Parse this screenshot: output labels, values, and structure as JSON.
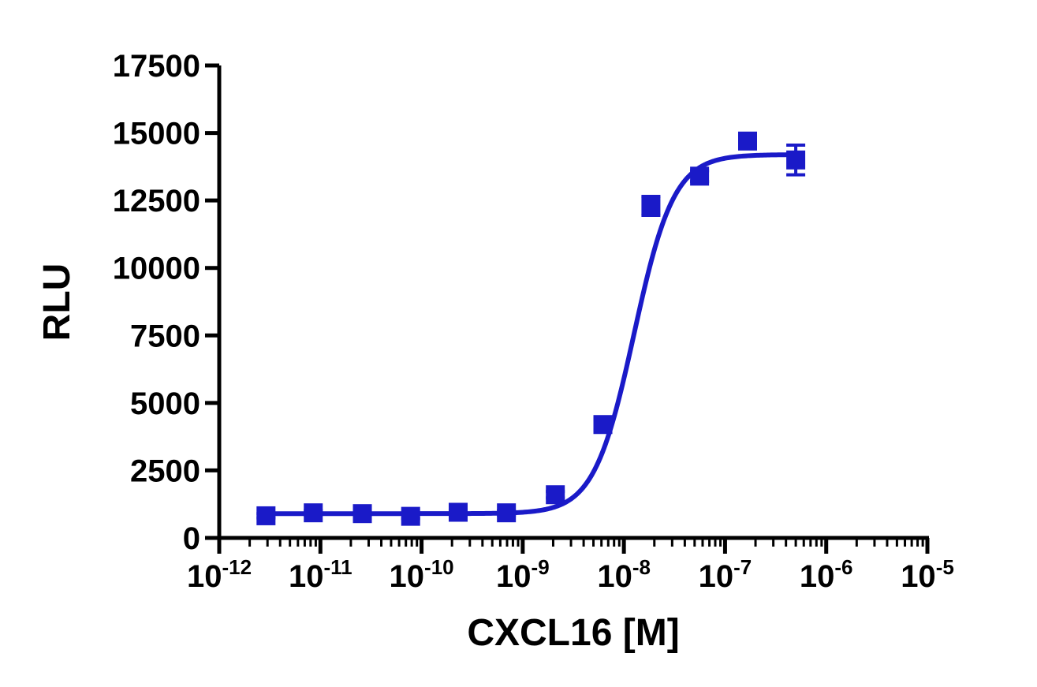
{
  "chart_data": {
    "type": "scatter",
    "xlabel": "CXCL16 [M]",
    "ylabel": "RLU",
    "x_scale": "log",
    "xlim": [
      1e-12,
      1e-05
    ],
    "ylim": [
      0,
      17500
    ],
    "x_ticks": [
      {
        "base": "10",
        "exp": "-12"
      },
      {
        "base": "10",
        "exp": "-11"
      },
      {
        "base": "10",
        "exp": "-10"
      },
      {
        "base": "10",
        "exp": "-9"
      },
      {
        "base": "10",
        "exp": "-8"
      },
      {
        "base": "10",
        "exp": "-7"
      },
      {
        "base": "10",
        "exp": "-6"
      },
      {
        "base": "10",
        "exp": "-5"
      }
    ],
    "y_ticks": [
      "0",
      "2500",
      "5000",
      "7500",
      "10000",
      "12500",
      "15000",
      "17500"
    ],
    "series": [
      {
        "color": "#1a1ac8",
        "marker": "square",
        "points": [
          {
            "x": 2.9e-12,
            "y": 820,
            "err": 80
          },
          {
            "x": 8.5e-12,
            "y": 930,
            "err": 80
          },
          {
            "x": 2.6e-11,
            "y": 900,
            "err": 80
          },
          {
            "x": 7.8e-11,
            "y": 800,
            "err": 80
          },
          {
            "x": 2.3e-10,
            "y": 950,
            "err": 80
          },
          {
            "x": 6.9e-10,
            "y": 930,
            "err": 80
          },
          {
            "x": 2.1e-09,
            "y": 1600,
            "err": 120
          },
          {
            "x": 6.2e-09,
            "y": 4200,
            "err": 200
          },
          {
            "x": 1.85e-08,
            "y": 12300,
            "err": 350
          },
          {
            "x": 5.6e-08,
            "y": 13400,
            "err": 200
          },
          {
            "x": 1.67e-07,
            "y": 14700,
            "err": 250
          },
          {
            "x": 5e-07,
            "y": 14000,
            "err": 550
          }
        ],
        "fit": {
          "model": "4PL",
          "bottom": 900,
          "top": 14200,
          "log_ec50": -7.9,
          "hill_slope": 2.2,
          "x_range": [
            3e-12,
            5e-07
          ]
        }
      }
    ]
  }
}
